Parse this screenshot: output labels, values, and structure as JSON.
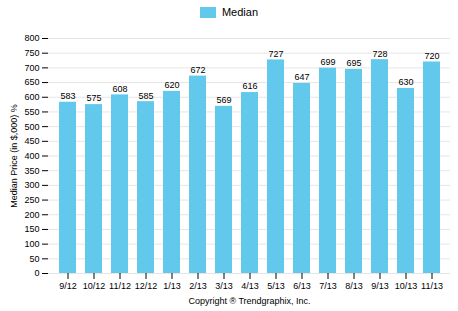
{
  "chart_data": {
    "type": "bar",
    "xlabel": "Copyright ® Trendgraphix, Inc.",
    "ylabel": "Median Price (in $,000) %",
    "categories": [
      "9/12",
      "10/12",
      "11/12",
      "12/12",
      "1/13",
      "2/13",
      "3/13",
      "4/13",
      "5/13",
      "6/13",
      "7/13",
      "8/13",
      "9/13",
      "10/13",
      "11/13"
    ],
    "series": [
      {
        "name": "Median",
        "color": "#62C8EC",
        "values": [
          583,
          575,
          608,
          585,
          620,
          672,
          569,
          616,
          727,
          647,
          699,
          695,
          728,
          630,
          720
        ]
      }
    ],
    "ylim": [
      0,
      800
    ],
    "yticks": [
      0,
      50,
      100,
      150,
      200,
      250,
      300,
      350,
      400,
      450,
      500,
      550,
      600,
      650,
      700,
      750,
      800
    ],
    "grid": true,
    "legend": "top",
    "data_labels": true
  }
}
